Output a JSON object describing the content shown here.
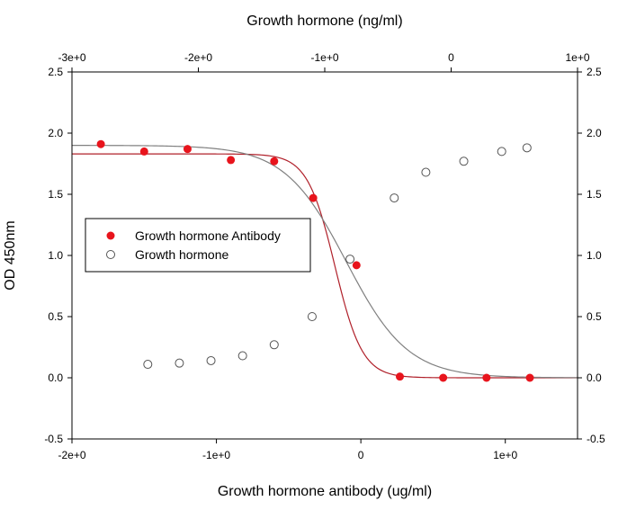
{
  "chart_data": {
    "type": "scatter",
    "xlabel_bottom": "Growth hormone antibody (ug/ml)",
    "xlabel_top": "Growth hormone (ng/ml)",
    "ylabel": "OD 450nm",
    "x_bottom_lim": [
      -2,
      1.5
    ],
    "x_top_lim": [
      -3,
      1
    ],
    "ylim": [
      -0.5,
      2.5
    ],
    "x_bottom_ticks": [
      {
        "value": -2,
        "label": "-2e+0"
      },
      {
        "value": -1,
        "label": "-1e+0"
      },
      {
        "value": 0,
        "label": "0"
      },
      {
        "value": 1,
        "label": "1e+0"
      }
    ],
    "x_top_ticks": [
      {
        "value": -3,
        "label": "-3e+0"
      },
      {
        "value": -2,
        "label": "-2e+0"
      },
      {
        "value": -1,
        "label": "-1e+0"
      },
      {
        "value": 0,
        "label": "0"
      },
      {
        "value": 1,
        "label": "1e+0"
      }
    ],
    "y_ticks": [
      {
        "value": -0.5,
        "label": "-0.5"
      },
      {
        "value": 0.0,
        "label": "0.0"
      },
      {
        "value": 0.5,
        "label": "0.5"
      },
      {
        "value": 1.0,
        "label": "1.0"
      },
      {
        "value": 1.5,
        "label": "1.5"
      },
      {
        "value": 2.0,
        "label": "2.0"
      },
      {
        "value": 2.5,
        "label": "2.5"
      }
    ],
    "legend_position": "left-middle",
    "series": [
      {
        "name": "Growth hormone Antibody",
        "axis": "bottom",
        "marker": "filled-circle",
        "color": "#e8141c",
        "curve_color": "#b0202a",
        "x": [
          -1.8,
          -1.5,
          -1.2,
          -0.9,
          -0.6,
          -0.33,
          -0.03,
          0.27,
          0.57,
          0.87,
          1.17
        ],
        "y": [
          1.91,
          1.85,
          1.87,
          1.78,
          1.77,
          1.47,
          0.92,
          0.01,
          0.0,
          0.0,
          0.0
        ],
        "fit": {
          "top": 1.83,
          "bottom": 0.0,
          "ec50": -0.18,
          "slope": 10.5
        }
      },
      {
        "name": "Growth hormone",
        "axis": "top",
        "marker": "open-circle",
        "color": "#555555",
        "curve_color": "#808080",
        "x": [
          -2.4,
          -2.15,
          -1.9,
          -1.65,
          -1.4,
          -1.1,
          -0.8,
          -0.45,
          -0.2,
          0.1,
          0.4,
          0.6
        ],
        "y": [
          0.11,
          0.12,
          0.14,
          0.18,
          0.27,
          0.5,
          0.97,
          1.47,
          1.68,
          1.77,
          1.85,
          1.88
        ],
        "fit": {
          "top": 1.9,
          "bottom": 0.0,
          "ec50": -0.83,
          "slope": 4.1
        }
      }
    ]
  }
}
